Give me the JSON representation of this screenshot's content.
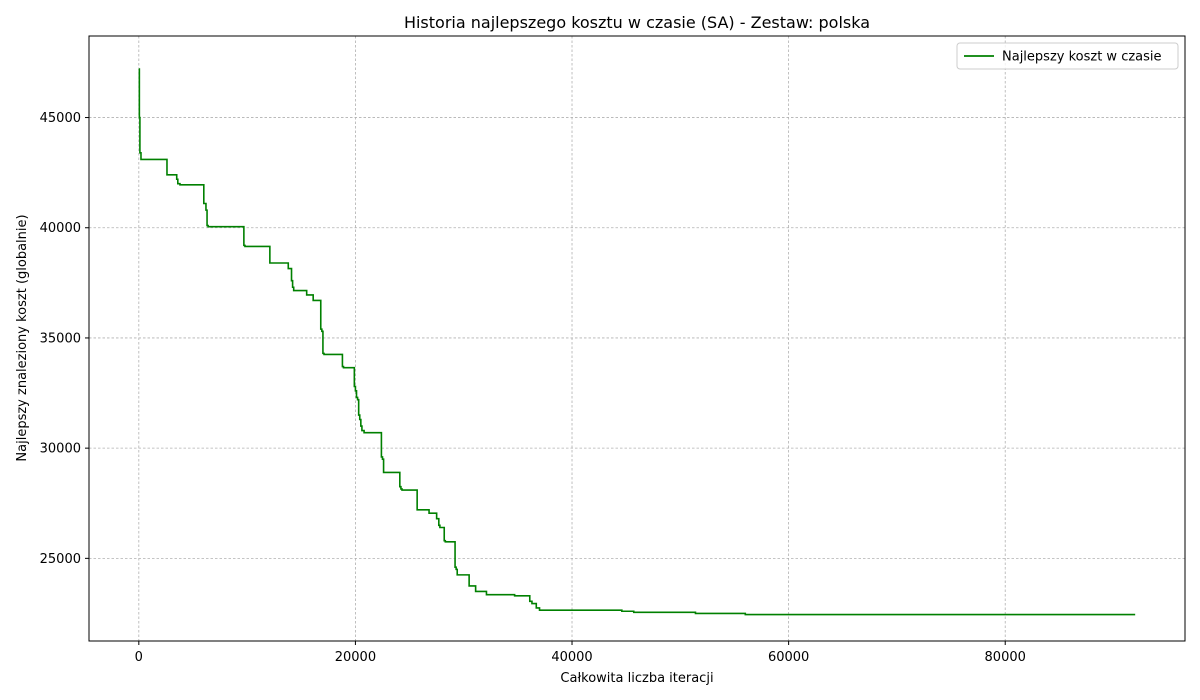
{
  "chart_data": {
    "type": "line",
    "title": "Historia najlepszego kosztu w czasie (SA) - Zestaw: polska",
    "xlabel": "Całkowita liczba iteracji",
    "ylabel": "Najlepszy znaleziony koszt (globalnie)",
    "xlim": [
      -4600,
      96600
    ],
    "ylim": [
      21250,
      48700
    ],
    "xticks": [
      0,
      20000,
      40000,
      60000,
      80000
    ],
    "yticks": [
      25000,
      30000,
      35000,
      40000,
      45000
    ],
    "grid": true,
    "legend_position": "top-right",
    "line_style": "step",
    "series": [
      {
        "name": "Najlepszy koszt w czasie",
        "color": "#008000",
        "x": [
          0,
          50,
          100,
          200,
          2600,
          3500,
          3600,
          3700,
          3800,
          6000,
          6100,
          6200,
          6300,
          6400,
          9700,
          9800,
          12100,
          13800,
          13900,
          14100,
          14200,
          14300,
          15500,
          15600,
          16100,
          16800,
          16900,
          17000,
          17100,
          18800,
          18900,
          19900,
          20000,
          20100,
          20200,
          20300,
          20400,
          20500,
          20600,
          20700,
          20800,
          22400,
          22500,
          22600,
          24100,
          24200,
          24300,
          25700,
          26800,
          27500,
          27700,
          27800,
          28200,
          28300,
          29200,
          29300,
          29400,
          29700,
          30500,
          31100,
          31300,
          32100,
          34700,
          36100,
          36300,
          36700,
          37000,
          44600,
          45700,
          51400,
          56000,
          92000
        ],
        "y": [
          47200,
          45000,
          43400,
          43100,
          42400,
          42200,
          42000,
          42000,
          41950,
          41100,
          41100,
          40800,
          40100,
          40050,
          39200,
          39150,
          38400,
          38150,
          38150,
          37600,
          37300,
          37150,
          36950,
          36950,
          36700,
          35400,
          35300,
          34300,
          34250,
          33700,
          33650,
          32800,
          32600,
          32300,
          32200,
          31500,
          31300,
          31000,
          30800,
          30800,
          30700,
          29600,
          29500,
          28900,
          28250,
          28150,
          28100,
          27200,
          27050,
          26800,
          26500,
          26400,
          25800,
          25750,
          24600,
          24500,
          24250,
          24250,
          23750,
          23500,
          23500,
          23350,
          23300,
          23050,
          22950,
          22750,
          22650,
          22600,
          22550,
          22500,
          22450,
          22450
        ]
      }
    ]
  }
}
